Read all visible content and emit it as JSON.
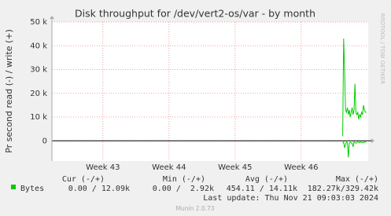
{
  "chart_data": {
    "type": "line",
    "title": "Disk throughput for /dev/vert2-os/var - by month",
    "y_label": "Pr second read (-) / write (+)",
    "side_label": "RRDTOOL / TOBI OETIKER",
    "xlim": [
      0,
      33.5
    ],
    "xticks": [
      {
        "value": 5.4,
        "label": "Week 43"
      },
      {
        "value": 12.4,
        "label": "Week 44"
      },
      {
        "value": 19.4,
        "label": "Week 45"
      },
      {
        "value": 26.4,
        "label": "Week 46"
      }
    ],
    "ylim": [
      -8500,
      50000
    ],
    "yticks": [
      0,
      {
        "value": 10000,
        "label": "10 k"
      },
      {
        "value": 20000,
        "label": "20 k"
      },
      {
        "value": 30000,
        "label": "30 k"
      },
      {
        "value": 40000,
        "label": "40 k"
      },
      {
        "value": 50000,
        "label": "50 k"
      }
    ],
    "grid": true,
    "x": [
      30.8,
      30.9,
      31.0,
      31.1,
      31.2,
      31.3,
      31.4,
      31.5,
      31.6,
      31.7,
      31.8,
      31.9,
      32.0,
      32.1,
      32.2,
      32.3,
      32.4,
      32.5,
      32.6,
      32.7,
      32.8,
      32.9,
      33.0,
      33.1,
      33.2,
      33.3
    ],
    "series": [
      {
        "name": "Bytes",
        "color": "#00cc00",
        "values": [
          2000,
          43000,
          30000,
          13000,
          12000,
          14000,
          11000,
          13000,
          10000,
          12000,
          14000,
          11000,
          13000,
          24000,
          12000,
          11000,
          12000,
          9000,
          11000,
          10000,
          12000,
          11000,
          15000,
          13000,
          12000,
          12090
        ],
        "read_values": [
          -1000,
          -500,
          -3000,
          -1500,
          -500,
          -800,
          -7000,
          -1000,
          -600,
          -800,
          -1200,
          -2500,
          -500,
          -800,
          -1000,
          -700,
          -500,
          -600,
          -800,
          -500,
          -700,
          -600,
          -800,
          -500,
          -600,
          0
        ]
      }
    ],
    "legend": {
      "headers": [
        "Cur (-/+)",
        "Min (-/+)",
        "Avg (-/+)",
        "Max (-/+)"
      ],
      "values": [
        "0.00 / 12.09k",
        "0.00 /  2.92k",
        "454.11 / 14.11k",
        "182.27k/329.42k"
      ]
    },
    "last_update": "Last update: Thu Nov 21 09:03:03 2024",
    "footer": "Munin 2.0.73"
  }
}
